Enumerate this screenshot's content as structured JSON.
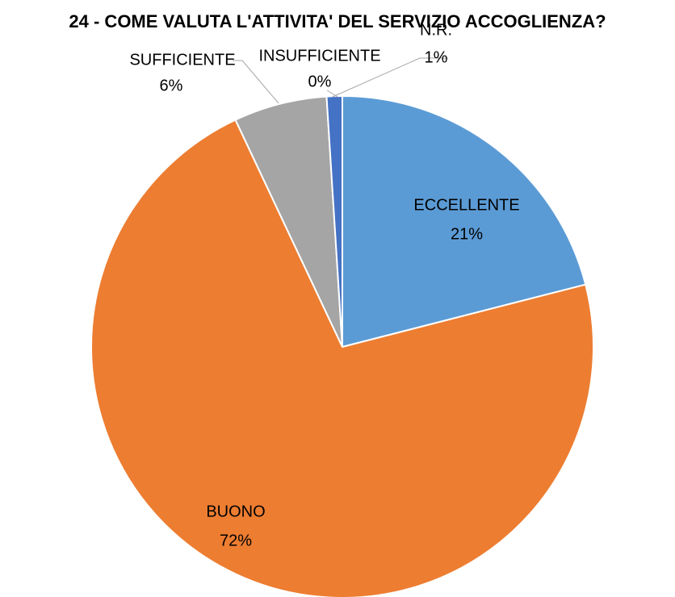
{
  "chart_data": {
    "type": "pie",
    "title": "24 - COME VALUTA L'ATTIVITA' DEL SERVIZIO ACCOGLIENZA?",
    "categories": [
      "ECCELLENTE",
      "BUONO",
      "SUFFICIENTE",
      "INSUFFICIENTE",
      "N.R."
    ],
    "values": [
      21,
      72,
      6,
      0,
      1
    ],
    "value_labels": [
      "21%",
      "72%",
      "6%",
      "0%",
      "1%"
    ],
    "colors": [
      "#5b9bd5",
      "#ed7d31",
      "#a5a5a5",
      "#ffc000",
      "#4472c4"
    ]
  }
}
